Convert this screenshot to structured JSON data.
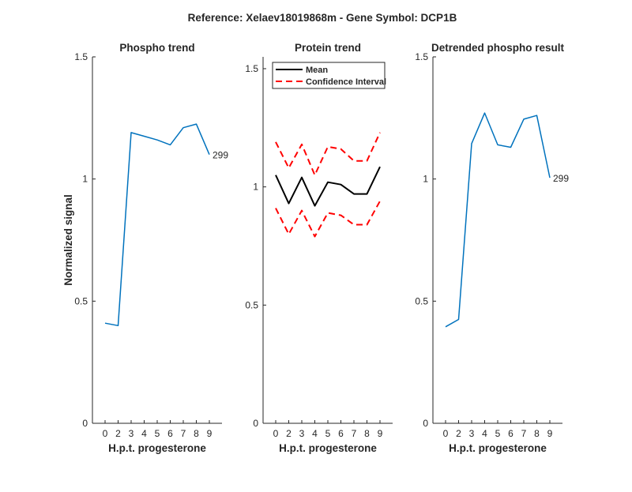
{
  "figure": {
    "title": "Reference:  Xelaev18019868m - Gene Symbol:  DCP1B"
  },
  "chart_data": [
    {
      "type": "line",
      "title": "Phospho trend",
      "xlabel": "H.p.t. progesterone",
      "ylabel": "Normalized signal",
      "categories": [
        "0",
        "2",
        "3",
        "4",
        "5",
        "6",
        "7",
        "8",
        "9"
      ],
      "ylim": [
        0,
        1.5
      ],
      "yticks": [
        0,
        0.5,
        1,
        1.5
      ],
      "ytick_labels": [
        "0",
        "0.5",
        "1",
        "1.5"
      ],
      "series": [
        {
          "values": [
            0.41,
            0.4,
            1.19,
            1.175,
            1.16,
            1.14,
            1.21,
            1.225,
            1.1
          ],
          "color": "#0072BD",
          "style": "solid"
        }
      ],
      "end_label": "299"
    },
    {
      "type": "line",
      "title": "Protein trend",
      "xlabel": "H.p.t. progesterone",
      "ylabel": "",
      "categories": [
        "0",
        "2",
        "3",
        "4",
        "5",
        "6",
        "7",
        "8",
        "9"
      ],
      "ylim": [
        0,
        1.55
      ],
      "yticks": [
        0,
        0.5,
        1,
        1.5
      ],
      "ytick_labels": [
        "0",
        "0.5",
        "1",
        "1.5"
      ],
      "series": [
        {
          "name": "Mean",
          "values": [
            1.05,
            0.93,
            1.04,
            0.92,
            1.02,
            1.01,
            0.97,
            0.97,
            1.085
          ],
          "color": "#000000",
          "style": "solid"
        },
        {
          "name": "Confidence Interval",
          "values": [
            1.19,
            1.08,
            1.18,
            1.05,
            1.17,
            1.16,
            1.11,
            1.11,
            1.23
          ],
          "color": "#FF0000",
          "style": "dashed"
        },
        {
          "values": [
            0.91,
            0.8,
            0.9,
            0.79,
            0.89,
            0.88,
            0.84,
            0.84,
            0.94
          ],
          "color": "#FF0000",
          "style": "dashed"
        }
      ],
      "legend": "top-left"
    },
    {
      "type": "line",
      "title": "Detrended phospho result",
      "xlabel": "H.p.t. progesterone",
      "ylabel": "",
      "categories": [
        "0",
        "2",
        "3",
        "4",
        "5",
        "6",
        "7",
        "8",
        "9"
      ],
      "ylim": [
        0,
        1.5
      ],
      "yticks": [
        0,
        0.5,
        1,
        1.5
      ],
      "ytick_labels": [
        "0",
        "0.5",
        "1",
        "1.5"
      ],
      "series": [
        {
          "values": [
            0.395,
            0.425,
            1.145,
            1.27,
            1.14,
            1.13,
            1.245,
            1.26,
            1.005
          ],
          "color": "#0072BD",
          "style": "solid"
        }
      ],
      "end_label": "299"
    }
  ]
}
